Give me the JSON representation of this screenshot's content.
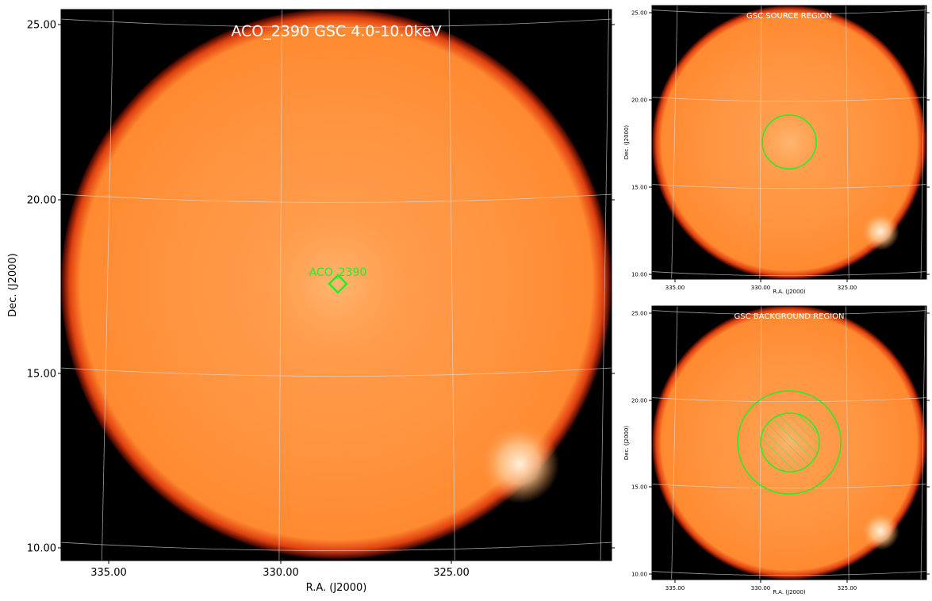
{
  "main": {
    "title": "ACO_2390 GSC 4.0-10.0keV",
    "source_label": "ACO_2390",
    "x_label": "R.A. (J2000)",
    "y_label": "Dec. (J2000)",
    "x_ticks": [
      "335.00",
      "330.00",
      "325.00"
    ],
    "y_ticks": [
      "25.00",
      "20.00",
      "15.00",
      "10.00"
    ]
  },
  "source_panel": {
    "title": "GSC SOURCE REGION",
    "x_label": "R.A. (J2000)",
    "y_label": "Dec. (J2000)",
    "x_ticks": [
      "335.00",
      "330.00",
      "325.00"
    ],
    "y_ticks": [
      "25.00",
      "20.00",
      "15.00",
      "10.00"
    ]
  },
  "background_panel": {
    "title": "GSC BACKGROUND REGION",
    "x_label": "R.A. (J2000)",
    "y_label": "Dec. (J2000)",
    "x_ticks": [
      "335.00",
      "330.00",
      "325.00"
    ],
    "y_ticks": [
      "25.00",
      "20.00",
      "15.00",
      "10.00"
    ]
  }
}
